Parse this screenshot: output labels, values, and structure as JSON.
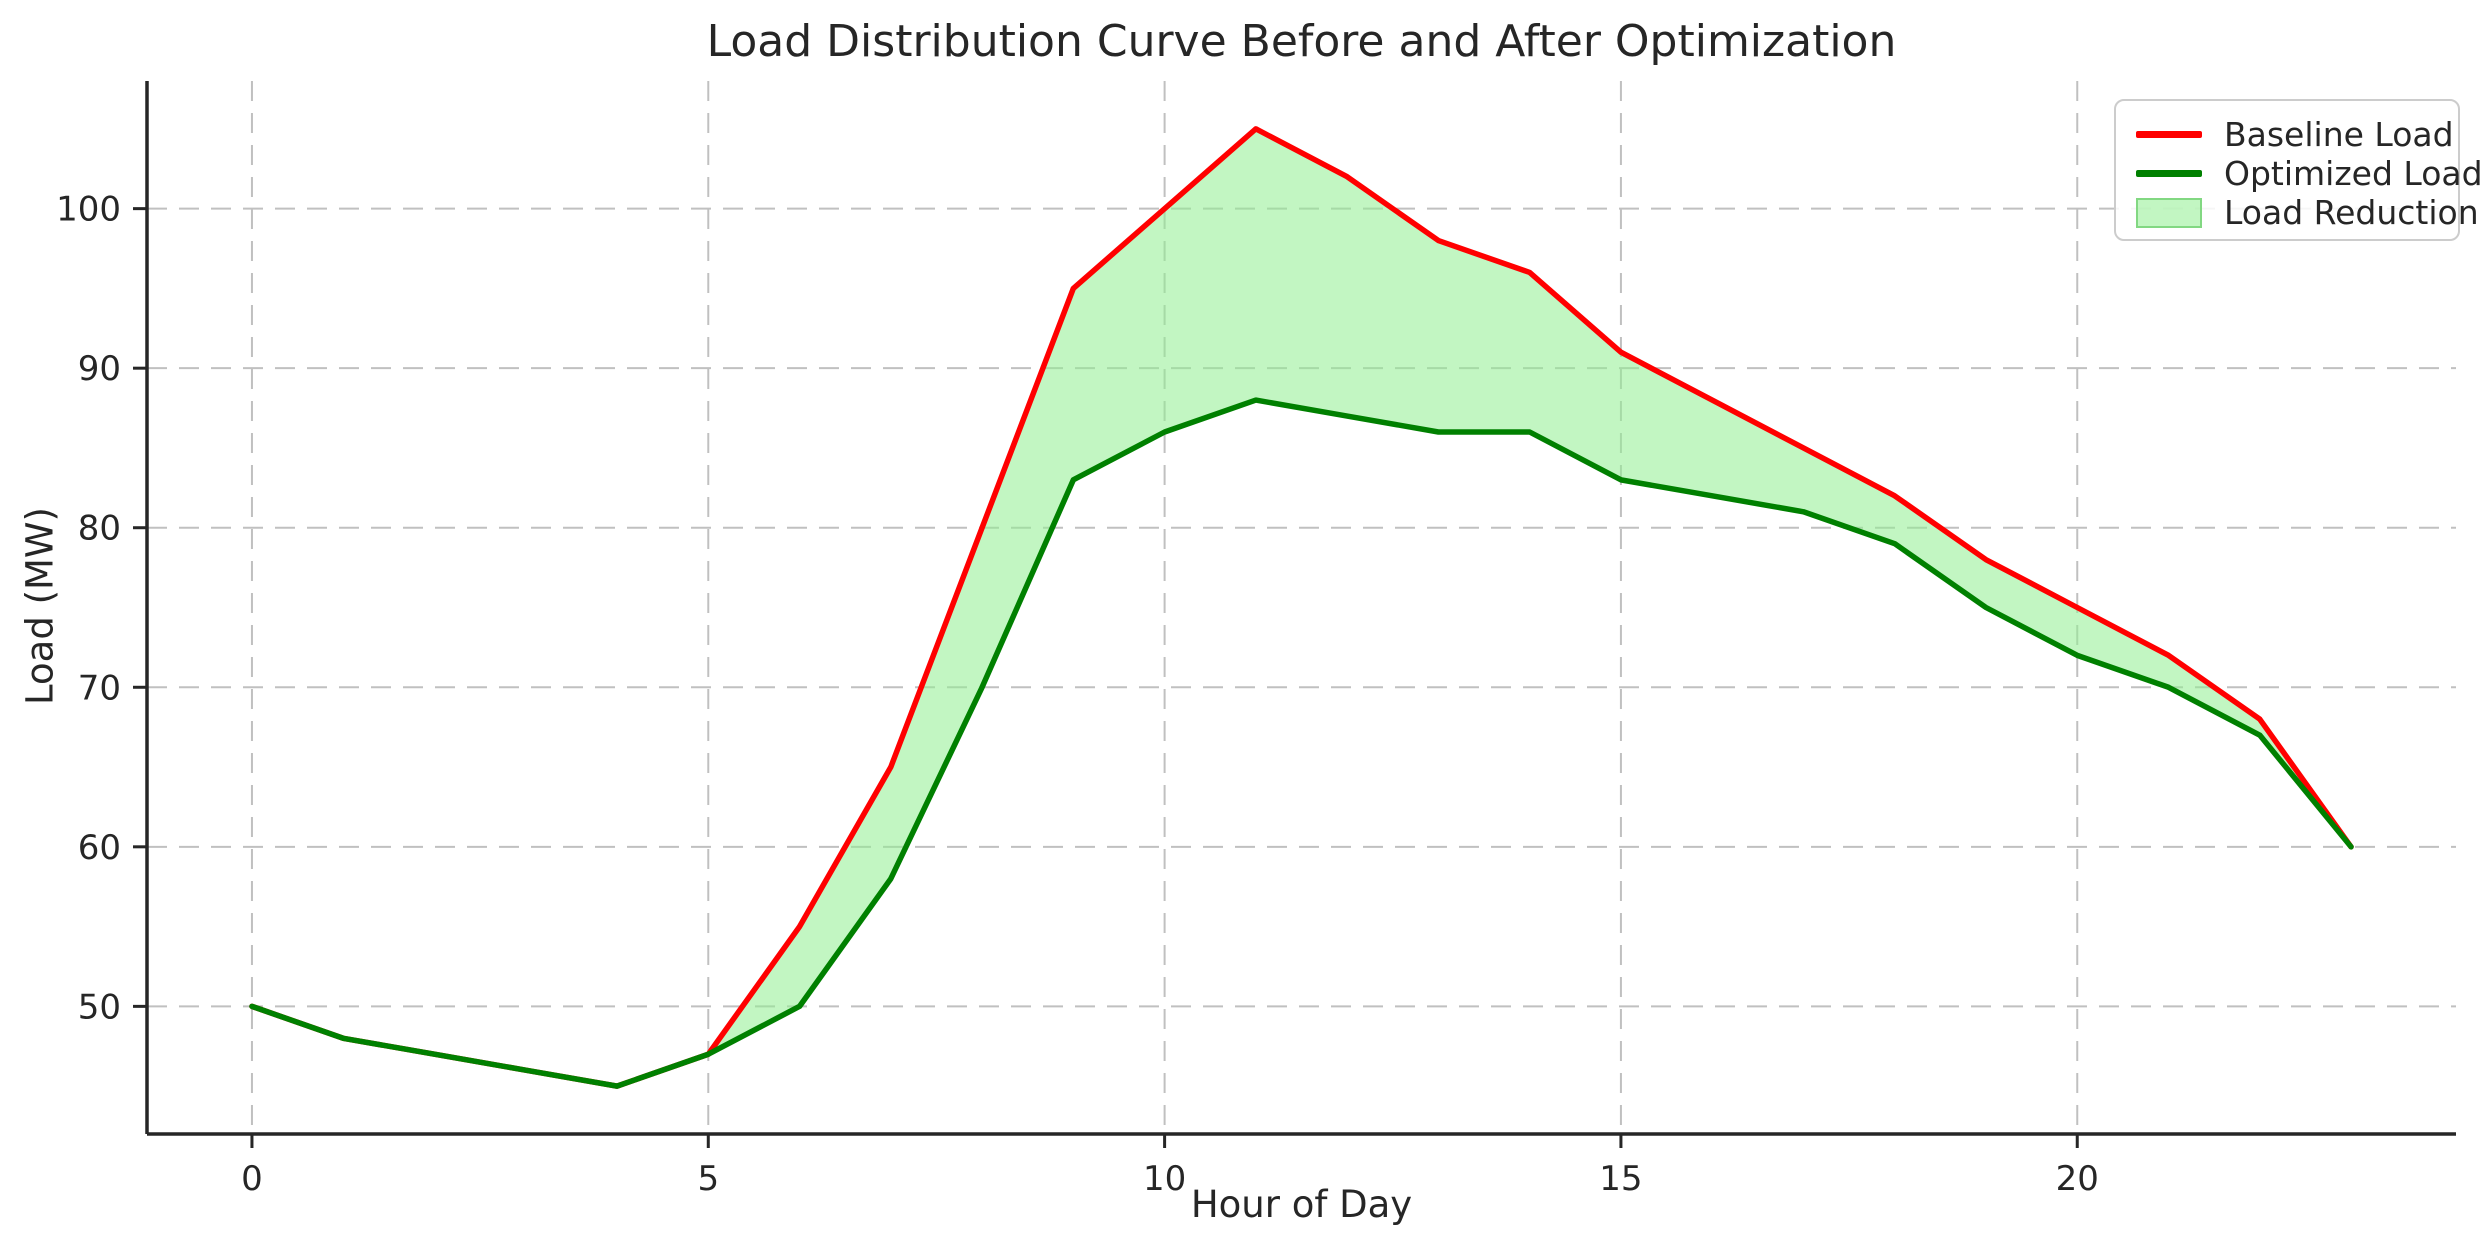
{
  "title": "Load Distribution Curve Before and After Optimization",
  "axes": {
    "x_label": "Hour of Day",
    "y_label": "Load (MW)",
    "x_ticks": [
      0,
      5,
      10,
      15,
      20
    ],
    "y_ticks": [
      50,
      60,
      70,
      80,
      90,
      100
    ]
  },
  "legend": {
    "items": [
      {
        "label": "Baseline Load",
        "type": "line",
        "color": "#ff0000"
      },
      {
        "label": "Optimized Load",
        "type": "line",
        "color": "#008000"
      },
      {
        "label": "Load Reduction",
        "type": "patch",
        "color": "#90ee90",
        "edge_color": "#82d882"
      }
    ]
  },
  "chart_data": {
    "type": "line",
    "title": "Load Distribution Curve Before and After Optimization",
    "xlabel": "Hour of Day",
    "ylabel": "Load (MW)",
    "x": [
      0,
      1,
      2,
      3,
      4,
      5,
      6,
      7,
      8,
      9,
      10,
      11,
      12,
      13,
      14,
      15,
      16,
      17,
      18,
      19,
      20,
      21,
      22,
      23
    ],
    "series": [
      {
        "name": "Baseline Load",
        "color": "#ff0000",
        "values": [
          50,
          48,
          47,
          46,
          45,
          47,
          55,
          65,
          80,
          95,
          100,
          105,
          102,
          98,
          96,
          91,
          88,
          85,
          82,
          78,
          75,
          72,
          68,
          60
        ]
      },
      {
        "name": "Optimized Load",
        "color": "#008000",
        "values": [
          50,
          48,
          47,
          46,
          45,
          47,
          50,
          58,
          70,
          83,
          86,
          88,
          87,
          86,
          86,
          83,
          82,
          81,
          79,
          75,
          72,
          70,
          67,
          60
        ]
      }
    ],
    "fill_between": {
      "name": "Load Reduction",
      "between": [
        "Baseline Load",
        "Optimized Load"
      ],
      "color": "#90ee90",
      "alpha": 0.55
    },
    "xlim": [
      -1.15,
      24.15
    ],
    "ylim": [
      42,
      108
    ],
    "grid": true,
    "grid_style": "dashed",
    "legend_position": "upper right"
  }
}
